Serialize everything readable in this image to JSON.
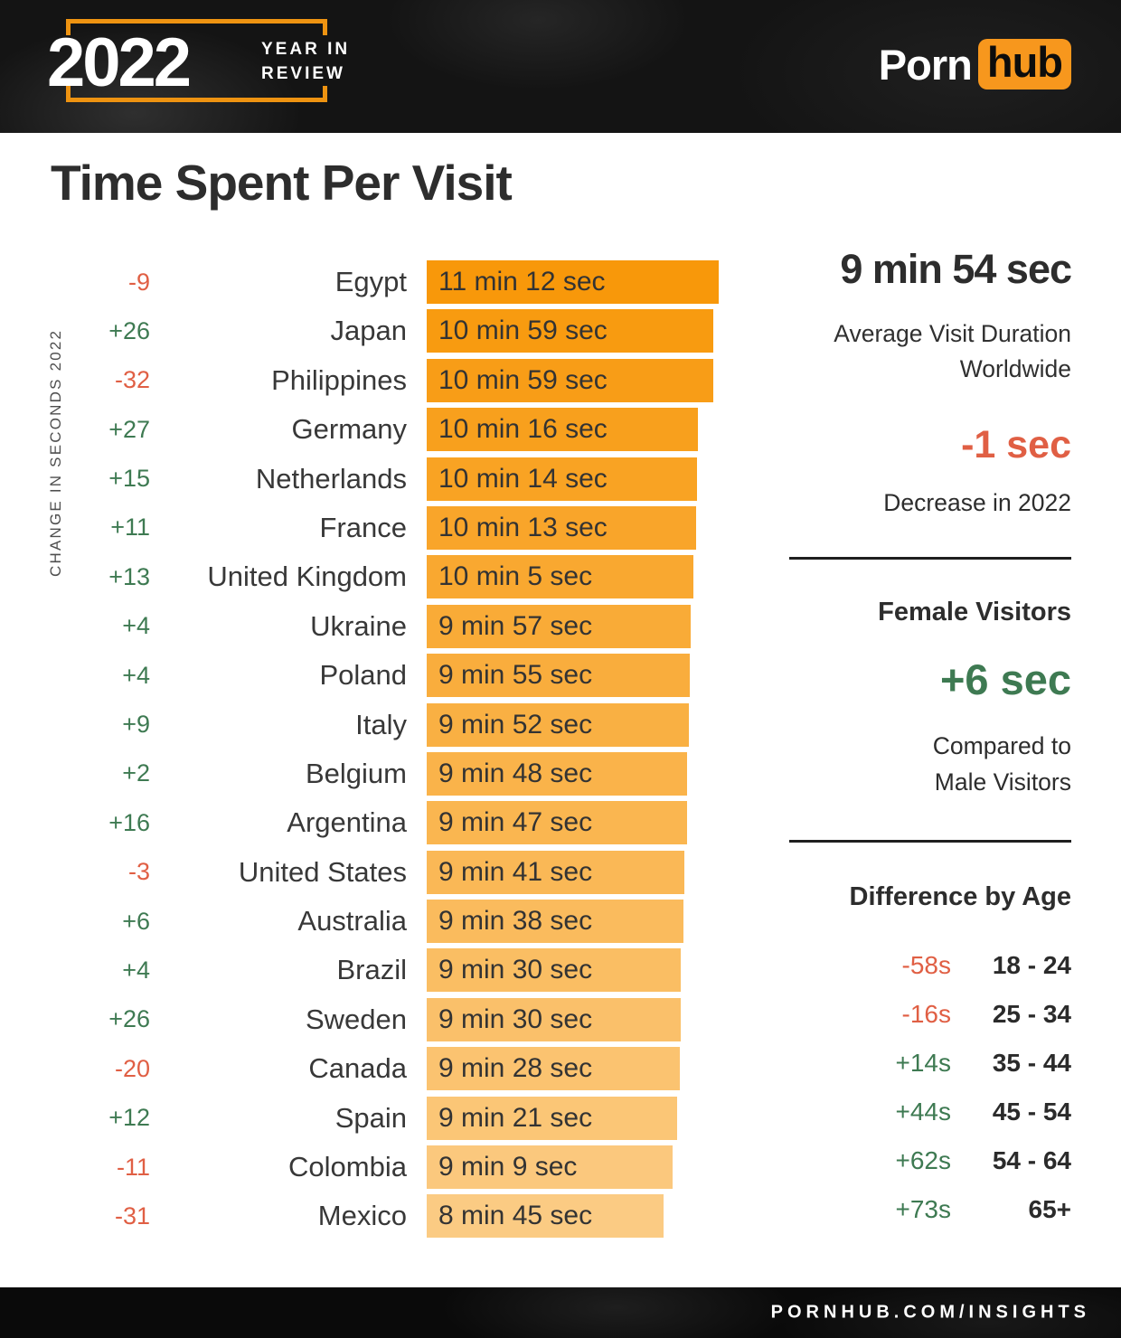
{
  "header": {
    "year": "2022",
    "tagline_line1": "YEAR IN",
    "tagline_line2": "REVIEW",
    "brand_part1": "Porn",
    "brand_part2": "hub"
  },
  "title": "Time Spent Per Visit",
  "chart_data": {
    "type": "bar",
    "orientation": "horizontal",
    "title": "Time Spent Per Visit",
    "axis_label": "CHANGE IN SECONDS 2022",
    "unit": "seconds",
    "categories": [
      "Egypt",
      "Japan",
      "Philippines",
      "Germany",
      "Netherlands",
      "France",
      "United Kingdom",
      "Ukraine",
      "Poland",
      "Italy",
      "Belgium",
      "Argentina",
      "United States",
      "Australia",
      "Brazil",
      "Sweden",
      "Canada",
      "Spain",
      "Colombia",
      "Mexico"
    ],
    "series": [
      {
        "name": "Average visit duration (seconds)",
        "values": [
          672,
          659,
          659,
          616,
          614,
          613,
          605,
          597,
          595,
          592,
          588,
          587,
          581,
          578,
          570,
          570,
          568,
          561,
          549,
          525
        ]
      },
      {
        "name": "Change in seconds 2022",
        "values": [
          -9,
          26,
          -32,
          27,
          15,
          11,
          13,
          4,
          4,
          9,
          2,
          16,
          -3,
          6,
          4,
          26,
          -20,
          12,
          -11,
          -31
        ]
      }
    ],
    "rows": [
      {
        "country": "Egypt",
        "change_label": "-9",
        "change": -9,
        "duration_label": "11 min 12 sec",
        "seconds": 672
      },
      {
        "country": "Japan",
        "change_label": "+26",
        "change": 26,
        "duration_label": "10 min 59 sec",
        "seconds": 659
      },
      {
        "country": "Philippines",
        "change_label": "-32",
        "change": -32,
        "duration_label": "10 min 59 sec",
        "seconds": 659
      },
      {
        "country": "Germany",
        "change_label": "+27",
        "change": 27,
        "duration_label": "10 min 16 sec",
        "seconds": 616
      },
      {
        "country": "Netherlands",
        "change_label": "+15",
        "change": 15,
        "duration_label": "10 min 14 sec",
        "seconds": 614
      },
      {
        "country": "France",
        "change_label": "+11",
        "change": 11,
        "duration_label": "10 min 13 sec",
        "seconds": 613
      },
      {
        "country": "United Kingdom",
        "change_label": "+13",
        "change": 13,
        "duration_label": "10 min 5 sec",
        "seconds": 605
      },
      {
        "country": "Ukraine",
        "change_label": "+4",
        "change": 4,
        "duration_label": "9 min 57 sec",
        "seconds": 597
      },
      {
        "country": "Poland",
        "change_label": "+4",
        "change": 4,
        "duration_label": "9 min 55 sec",
        "seconds": 595
      },
      {
        "country": "Italy",
        "change_label": "+9",
        "change": 9,
        "duration_label": "9 min 52 sec",
        "seconds": 592
      },
      {
        "country": "Belgium",
        "change_label": "+2",
        "change": 2,
        "duration_label": "9 min 48 sec",
        "seconds": 588
      },
      {
        "country": "Argentina",
        "change_label": "+16",
        "change": 16,
        "duration_label": "9 min 47 sec",
        "seconds": 587
      },
      {
        "country": "United States",
        "change_label": "-3",
        "change": -3,
        "duration_label": "9 min 41 sec",
        "seconds": 581
      },
      {
        "country": "Australia",
        "change_label": "+6",
        "change": 6,
        "duration_label": "9 min 38 sec",
        "seconds": 578
      },
      {
        "country": "Brazil",
        "change_label": "+4",
        "change": 4,
        "duration_label": "9 min 30 sec",
        "seconds": 570
      },
      {
        "country": "Sweden",
        "change_label": "+26",
        "change": 26,
        "duration_label": "9 min 30 sec",
        "seconds": 570
      },
      {
        "country": "Canada",
        "change_label": "-20",
        "change": -20,
        "duration_label": "9 min 28 sec",
        "seconds": 568
      },
      {
        "country": "Spain",
        "change_label": "+12",
        "change": 12,
        "duration_label": "9 min 21 sec",
        "seconds": 561
      },
      {
        "country": "Colombia",
        "change_label": "-11",
        "change": -11,
        "duration_label": "9 min 9 sec",
        "seconds": 549
      },
      {
        "country": "Mexico",
        "change_label": "-31",
        "change": -31,
        "duration_label": "8 min 45 sec",
        "seconds": 525
      }
    ]
  },
  "sidebar": {
    "avg": {
      "value": "9 min 54 sec",
      "label_line1": "Average Visit Duration",
      "label_line2": "Worldwide"
    },
    "decrease": {
      "value": "-1 sec",
      "label": "Decrease in 2022"
    },
    "female": {
      "title": "Female Visitors",
      "value": "+6 sec",
      "label_line1": "Compared to",
      "label_line2": "Male Visitors"
    },
    "age": {
      "title": "Difference by Age",
      "rows": [
        {
          "value": "-58s",
          "sign": -1,
          "range": "18 - 24"
        },
        {
          "value": "-16s",
          "sign": -1,
          "range": "25 - 34"
        },
        {
          "value": "+14s",
          "sign": 1,
          "range": "35 - 44"
        },
        {
          "value": "+44s",
          "sign": 1,
          "range": "45 - 54"
        },
        {
          "value": "+62s",
          "sign": 1,
          "range": "54 - 64"
        },
        {
          "value": "+73s",
          "sign": 1,
          "range": "65+"
        }
      ]
    }
  },
  "footer": {
    "url": "PORNHUB.COM/INSIGHTS"
  },
  "colors": {
    "accent_orange": "#F7971D",
    "frame_orange": "#EE9311",
    "positive": "#3E7A52",
    "negative": "#E05F44",
    "bar_start": "#F8980A",
    "bar_end": "#FBCB83"
  }
}
